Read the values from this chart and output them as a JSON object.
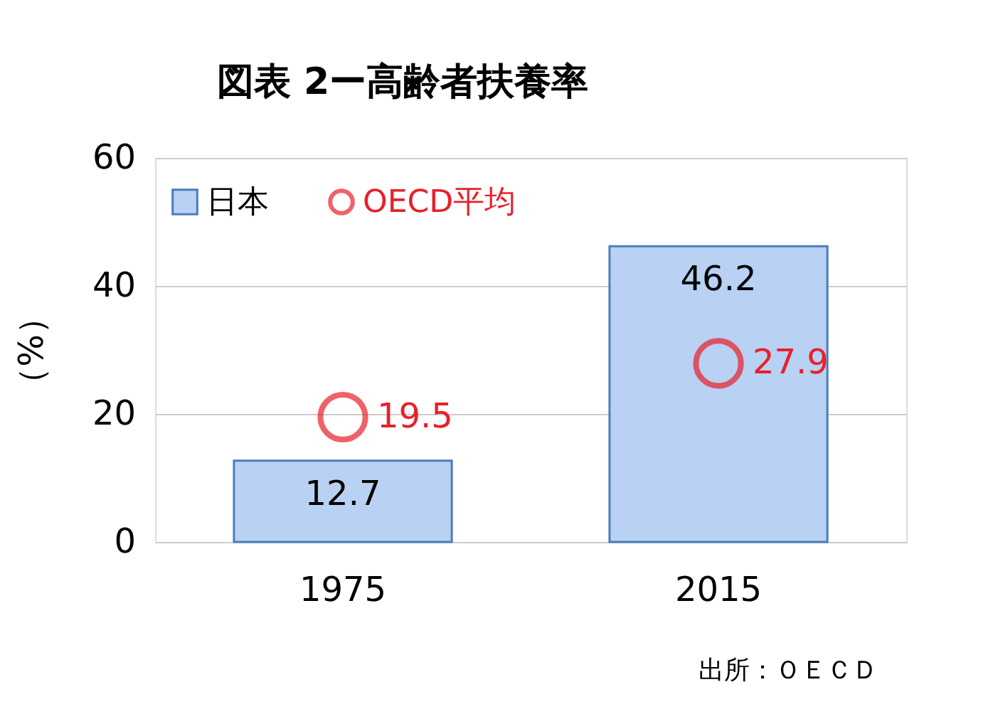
{
  "chart_data": {
    "type": "bar",
    "title": "図表 2ー高齢者扶養率",
    "ylabel": "（%）",
    "categories": [
      "1975",
      "2015"
    ],
    "series": [
      {
        "name": "日本",
        "color": "#b9d1f2",
        "values": [
          12.7,
          46.2
        ]
      },
      {
        "name": "OECD平均",
        "type": "scatter",
        "color": "#e8202a",
        "values": [
          19.5,
          27.9
        ]
      }
    ],
    "ylim": [
      0,
      60
    ],
    "yticks": [
      0,
      20,
      40,
      60
    ],
    "grid": "y",
    "legend": "top left",
    "marker": "circle",
    "data_labels": true,
    "annotations": [
      "出所：ＯＥＣＤ"
    ]
  }
}
